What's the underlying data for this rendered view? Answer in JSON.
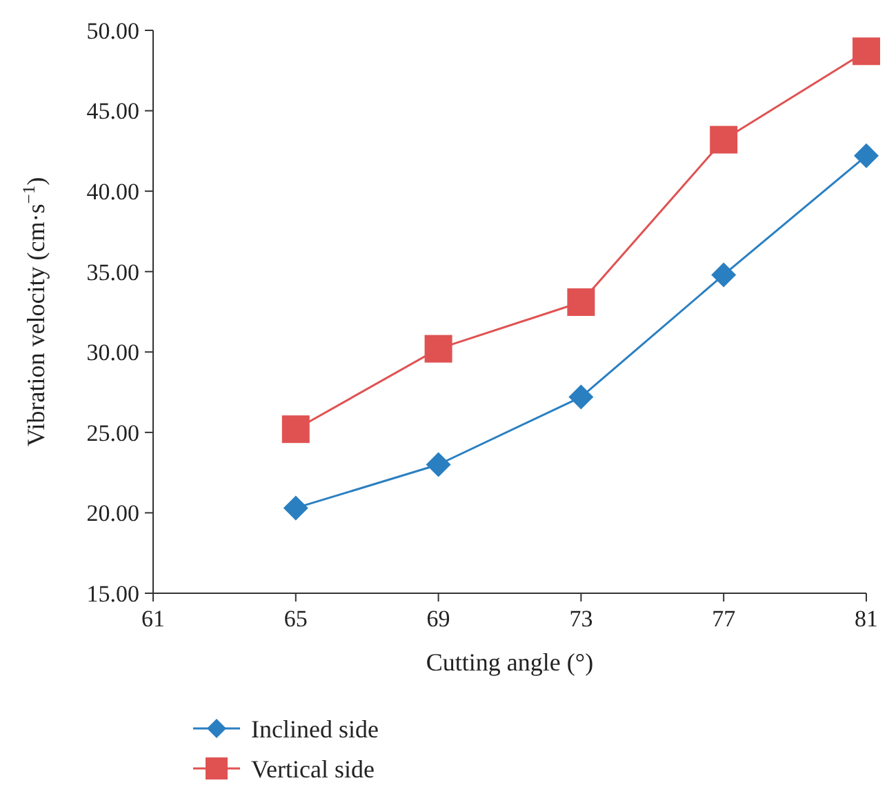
{
  "chart_data": {
    "type": "line",
    "xlabel": "Cutting angle (°)",
    "ylabel": "Vibration velocity (cm·s$^{−1}$)",
    "x": [
      65,
      69,
      73,
      77,
      81
    ],
    "xlim": [
      61,
      81
    ],
    "xticks": [
      61,
      65,
      69,
      73,
      77,
      81
    ],
    "ylim": [
      15,
      50
    ],
    "yticks": [
      {
        "value": 15,
        "label": "15.00"
      },
      {
        "value": 20,
        "label": "20.00"
      },
      {
        "value": 25,
        "label": "25.00"
      },
      {
        "value": 30,
        "label": "30.00"
      },
      {
        "value": 35,
        "label": "35.00"
      },
      {
        "value": 40,
        "label": "40.00"
      },
      {
        "value": 45,
        "label": "45.00"
      },
      {
        "value": 50,
        "label": "50.00"
      }
    ],
    "series": [
      {
        "name": "Inclined side",
        "color": "#2a7fc1",
        "marker": "diamond",
        "values": [
          20.3,
          23.0,
          27.2,
          34.8,
          42.2
        ]
      },
      {
        "name": "Vertical side",
        "color": "#e05252",
        "marker": "square",
        "values": [
          25.2,
          30.2,
          33.1,
          43.2,
          48.7
        ]
      }
    ],
    "grid": false,
    "legend": "bottom left",
    "line_style": "solid"
  }
}
